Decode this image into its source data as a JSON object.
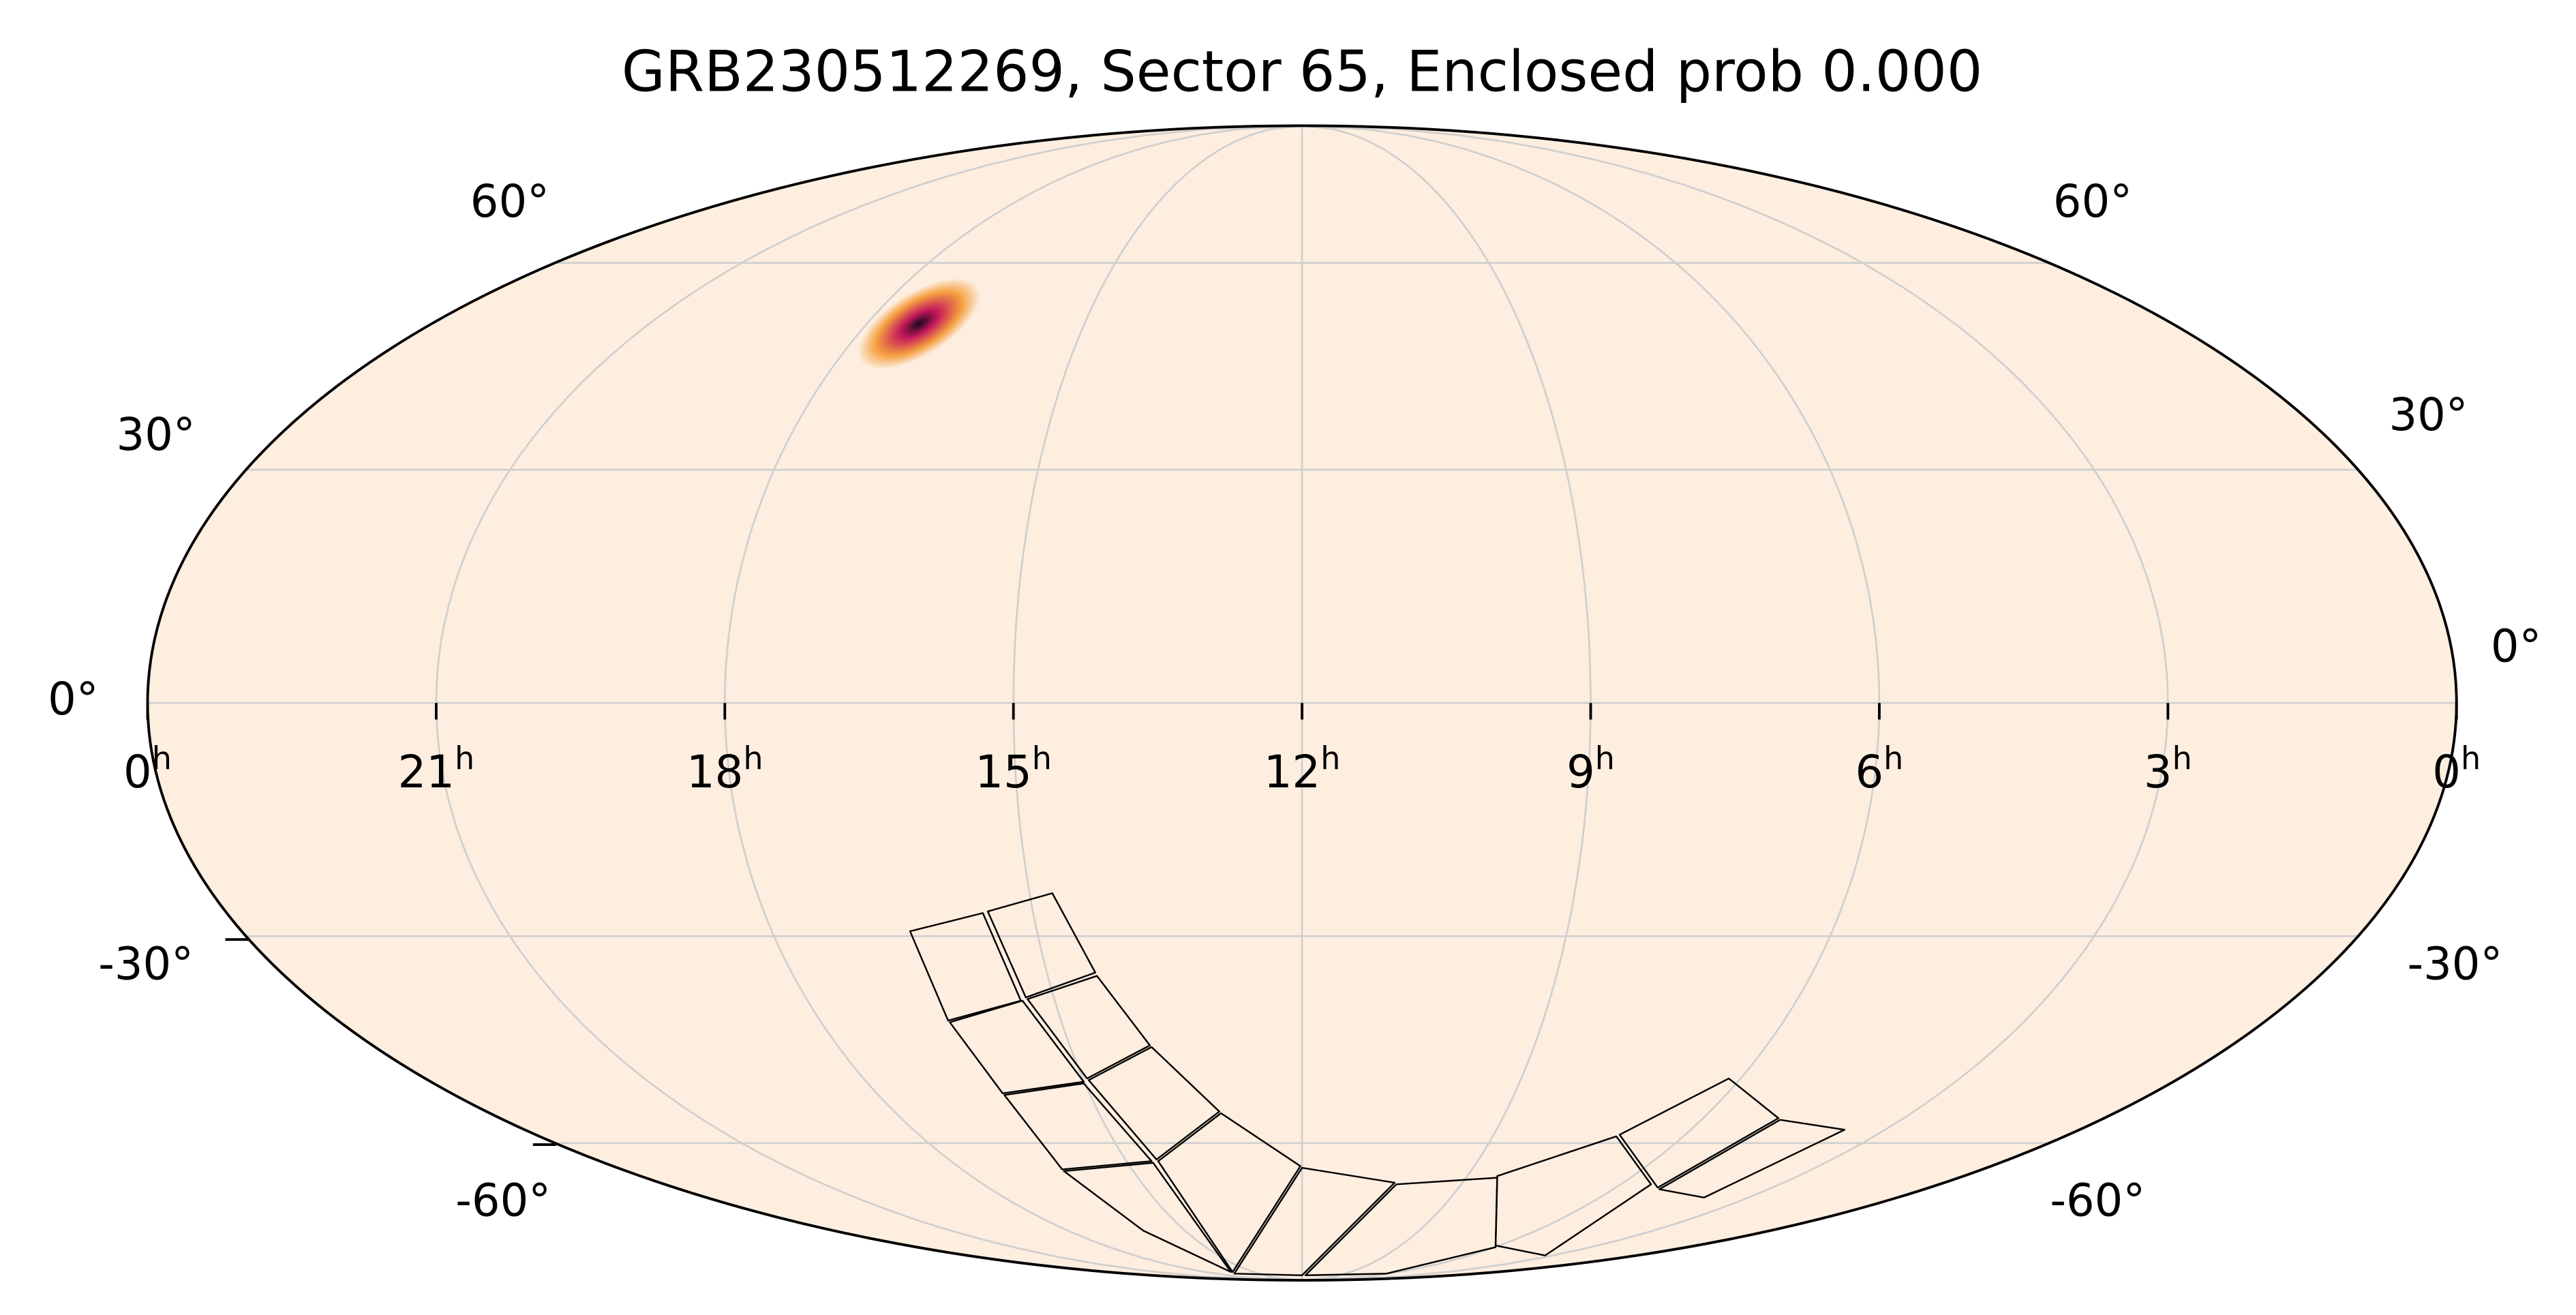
{
  "title": "GRB230512269, Sector 65, Enclosed prob 0.000",
  "colors": {
    "sky_background": "#fdeee0",
    "graticule": "#cfcfcf",
    "outline": "#000000",
    "footprint": "#000000",
    "hotspot_core": "#1a0a1e",
    "hotspot_mid": "#c3185a",
    "hotspot_edge": "#f5a040"
  },
  "map": {
    "projection": "mollweide",
    "ra_tick_labels": [
      {
        "hour": 0,
        "label": "0",
        "sup": "h"
      },
      {
        "hour": 21,
        "label": "21",
        "sup": "h"
      },
      {
        "hour": 18,
        "label": "18",
        "sup": "h"
      },
      {
        "hour": 15,
        "label": "15",
        "sup": "h"
      },
      {
        "hour": 12,
        "label": "12",
        "sup": "h"
      },
      {
        "hour": 9,
        "label": "9",
        "sup": "h"
      },
      {
        "hour": 6,
        "label": "6",
        "sup": "h"
      },
      {
        "hour": 3,
        "label": "3",
        "sup": "h"
      },
      {
        "hour": 24,
        "label": "0",
        "sup": "h"
      }
    ],
    "dec_labels_left": [
      "60°",
      "30°",
      "0°",
      "-30°",
      "-60°"
    ],
    "dec_labels_right": [
      "60°",
      "30°",
      "0°",
      "-30°",
      "-60°"
    ],
    "hotspot": {
      "ra_hours": 17.28,
      "dec_deg": 50.5
    },
    "footprint_description": "Sector 65 camera/CCD footprint"
  }
}
